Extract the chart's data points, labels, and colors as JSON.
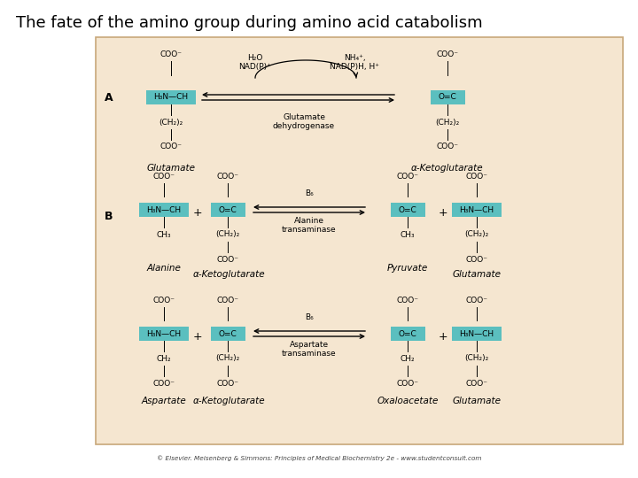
{
  "title": "The fate of the amino group during amino acid catabolism",
  "title_fontsize": 13,
  "bg_color": "#ffffff",
  "panel_bg": "#f5e6d0",
  "panel_border": "#c8a87a",
  "highlight_color": "#5bbfbf",
  "text_color": "#000000",
  "footer": "© Elsevier. Meisenberg & Simmons: Principles of Medical Biochemistry 2e - www.studentconsult.com",
  "coo_minus": "COO⁻",
  "h3n_ch": "H₃N—CH",
  "oc": "O=C",
  "ch2_2": "(CH₂)₂",
  "ch3": "CH₃",
  "ch2": "CH₂",
  "label_A": "A",
  "label_B": "B",
  "glutamate": "Glutamate",
  "alpha_kg": "α-Ketoglutarate",
  "alanine": "Alanine",
  "pyruvate": "Pyruvate",
  "aspartate": "Aspartate",
  "oxaloacetate": "Oxaloacetate",
  "h2o_nadp": "H₂O\nNAD(P)⁺",
  "nh4_nadph": "NH₄⁺,\nNAD(P)H, H⁺",
  "glut_dehyd": "Glutamate\ndehydrogenase",
  "b6": "B₆",
  "ala_trans": "Alanine\ntransaminase",
  "asp_trans": "Aspartate\ntransaminase"
}
